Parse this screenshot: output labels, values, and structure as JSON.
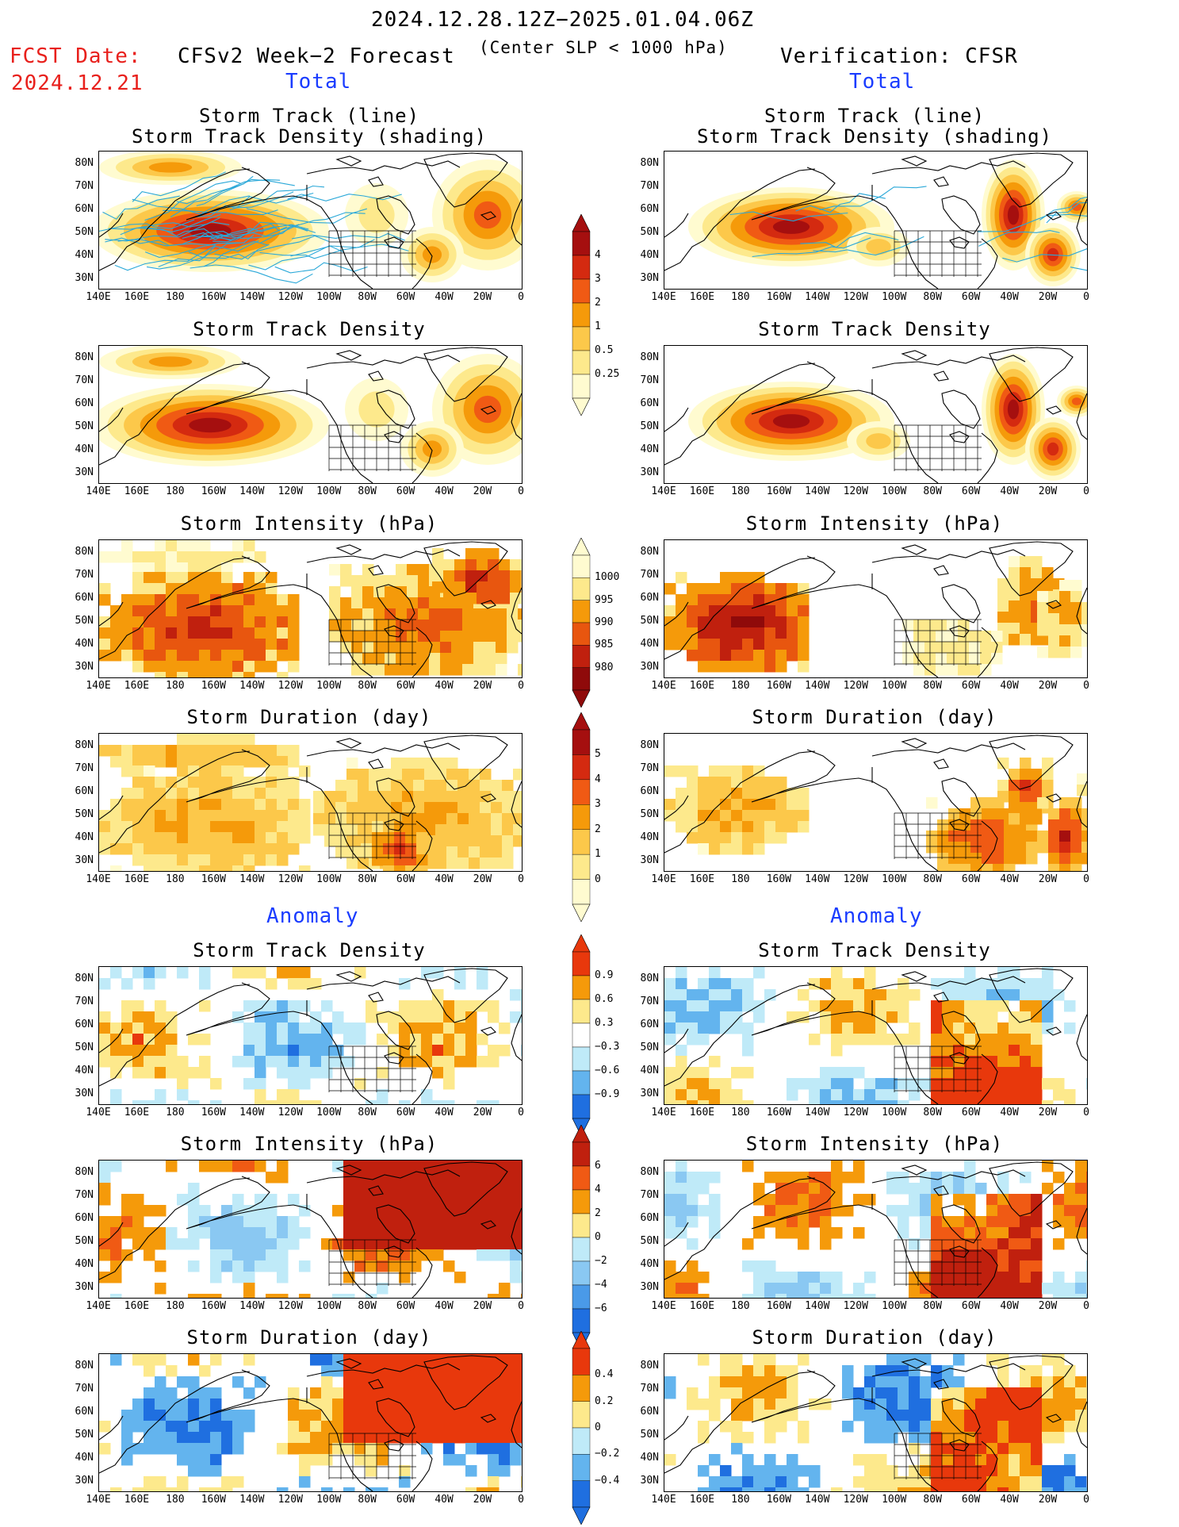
{
  "header": {
    "date_range": "2024.12.28.12Z−2025.01.04.06Z",
    "criterion": "(Center SLP < 1000 hPa)",
    "fcst_label": "FCST Date:",
    "fcst_date": "2024.12.21",
    "left_model": "CFSv2 Week−2 Forecast",
    "right_model": "Verification: CFSR",
    "total_left": "Total",
    "total_right": "Total",
    "anomaly_left": "Anomaly",
    "anomaly_right": "Anomaly"
  },
  "panel_titles": {
    "p1a": "Storm Track (line)",
    "p1b": "Storm Track Density (shading)",
    "p2": "Storm Track Density",
    "p3": "Storm Intensity (hPa)",
    "p4": "Storm Duration (day)",
    "p5": "Storm Track Density",
    "p6": "Storm Intensity (hPa)",
    "p7": "Storm Duration (day)"
  },
  "axes": {
    "lat": [
      "80N",
      "70N",
      "60N",
      "50N",
      "40N",
      "30N"
    ],
    "lon": [
      "140E",
      "160E",
      "180",
      "160W",
      "140W",
      "120W",
      "100W",
      "80W",
      "60W",
      "40W",
      "20W",
      "0"
    ]
  },
  "colorbars": {
    "density": {
      "labels": [
        "4",
        "3",
        "2",
        "1",
        "0.5",
        "0.25"
      ],
      "colors": [
        "#a50f0f",
        "#d42a10",
        "#f05a14",
        "#f59a0a",
        "#fcc84a",
        "#fde98c",
        "#fffbd0"
      ]
    },
    "intensity": {
      "labels": [
        "1000",
        "995",
        "990",
        "985",
        "980"
      ],
      "colors": [
        "#fffbd0",
        "#fde98c",
        "#f59a0a",
        "#e8560f",
        "#c0200e",
        "#8f0a0a"
      ]
    },
    "duration": {
      "labels": [
        "5",
        "4",
        "3",
        "2",
        "1",
        "0"
      ],
      "colors": [
        "#a50f0f",
        "#d42a10",
        "#f05a14",
        "#f59a0a",
        "#fcc84a",
        "#fde98c",
        "#fffbd0"
      ]
    },
    "anom_density": {
      "labels": [
        "0.9",
        "0.6",
        "0.3",
        "−0.3",
        "−0.6",
        "−0.9"
      ],
      "colors": [
        "#e8380c",
        "#f59a0a",
        "#fde98c",
        "#ffffff",
        "#bfeaf8",
        "#63b4ee",
        "#1f6fe0"
      ]
    },
    "anom_intensity": {
      "labels": [
        "6",
        "4",
        "2",
        "0",
        "−2",
        "−4",
        "−6"
      ],
      "colors": [
        "#c0200e",
        "#f05a14",
        "#f59a0a",
        "#fde98c",
        "#bfeaf8",
        "#8ac8f2",
        "#4a9ae8",
        "#1f6fe0"
      ]
    },
    "anom_duration": {
      "labels": [
        "0.4",
        "0.2",
        "0",
        "−0.2",
        "−0.4"
      ],
      "colors": [
        "#e8380c",
        "#f59a0a",
        "#fde98c",
        "#bfeaf8",
        "#63b4ee",
        "#1f6fe0"
      ]
    }
  }
}
